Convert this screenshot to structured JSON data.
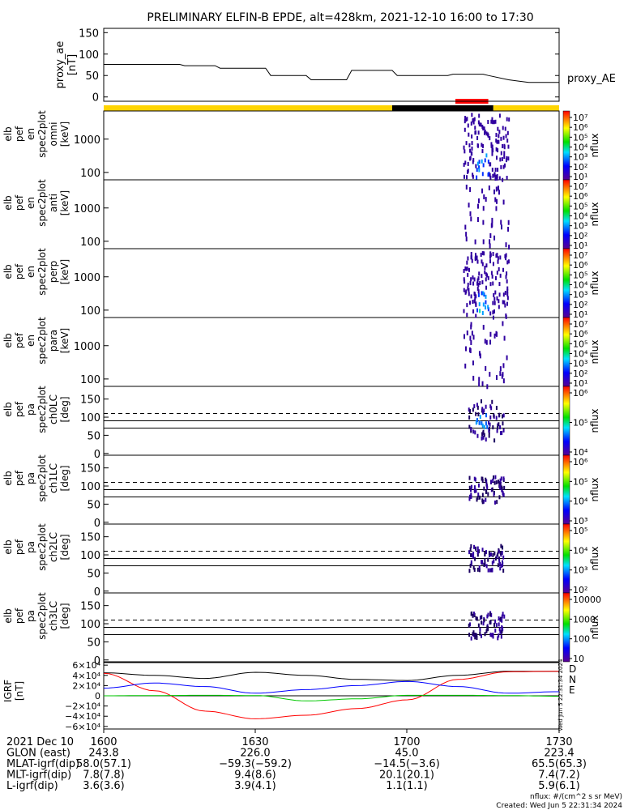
{
  "title": "PRELIMINARY ELFIN-B EPDE, alt=428km, 2021-12-10 16:00 to 17:30",
  "colors": {
    "axis": "#000000",
    "yellow_bar": "#ffd400",
    "black_bar": "#000000",
    "red_marker": "#ff0000",
    "spec_core": "#00a0ff",
    "spec_edge": "#3000a0",
    "igrf_total": "#000000",
    "igrf_north": "#0000ff",
    "igrf_east": "#00c800",
    "igrf_down": "#ff0000"
  },
  "ae_panel": {
    "ylabel_lines": [
      "proxy_ae",
      "[nT]"
    ],
    "ticks": [
      "150",
      "100",
      "50",
      "0"
    ],
    "legend": "proxy_AE"
  },
  "spec_panels": [
    {
      "label_lines": [
        "elb",
        "pef",
        "en",
        "spec2plot",
        "omni",
        "[keV]"
      ],
      "ticks": [
        "1000",
        "100"
      ],
      "cb_ticks": [
        "10⁷",
        "10⁶",
        "10⁵",
        "10⁴",
        "10³",
        "10²",
        "10¹"
      ],
      "cb_label": "nflux"
    },
    {
      "label_lines": [
        "elb",
        "pef",
        "en",
        "spec2plot",
        "anti",
        "[keV]"
      ],
      "ticks": [
        "1000",
        "100"
      ],
      "cb_ticks": [
        "10⁷",
        "10⁶",
        "10⁵",
        "10⁴",
        "10³",
        "10²",
        "10¹"
      ],
      "cb_label": "nflux"
    },
    {
      "label_lines": [
        "elb",
        "pef",
        "en",
        "spec2plot",
        "perp",
        "[keV]"
      ],
      "ticks": [
        "1000",
        "100"
      ],
      "cb_ticks": [
        "10⁷",
        "10⁶",
        "10⁵",
        "10⁴",
        "10³",
        "10²",
        "10¹"
      ],
      "cb_label": "nflux"
    },
    {
      "label_lines": [
        "elb",
        "pef",
        "en",
        "spec2plot",
        "para",
        "[keV]"
      ],
      "ticks": [
        "1000",
        "100"
      ],
      "cb_ticks": [
        "10⁷",
        "10⁶",
        "10⁵",
        "10⁴",
        "10³",
        "10²",
        "10¹"
      ],
      "cb_label": "nflux"
    }
  ],
  "pa_panels": [
    {
      "label_lines": [
        "elb",
        "pef",
        "pa",
        "spec2plot",
        "ch0LC",
        "[deg]"
      ],
      "ticks": [
        "150",
        "100",
        "50",
        "0"
      ],
      "cb_ticks": [
        "10⁶",
        "10⁵",
        "10⁴"
      ],
      "cb_label": "nflux"
    },
    {
      "label_lines": [
        "elb",
        "pef",
        "pa",
        "spec2plot",
        "ch1LC",
        "[deg]"
      ],
      "ticks": [
        "150",
        "100",
        "50",
        "0"
      ],
      "cb_ticks": [
        "10⁶",
        "10⁵",
        "10⁴",
        "10³"
      ],
      "cb_label": "nflux"
    },
    {
      "label_lines": [
        "elb",
        "pef",
        "pa",
        "spec2plot",
        "ch2LC",
        "[deg]"
      ],
      "ticks": [
        "150",
        "100",
        "50",
        "0"
      ],
      "cb_ticks": [
        "10⁵",
        "10⁴",
        "10³",
        "10²"
      ],
      "cb_label": "nflux"
    },
    {
      "label_lines": [
        "elb",
        "pef",
        "pa",
        "spec2plot",
        "ch3LC",
        "[deg]"
      ],
      "ticks": [
        "150",
        "100",
        "50",
        "0"
      ],
      "cb_ticks": [
        "10000",
        "1000",
        "100",
        "10"
      ],
      "cb_label": "nflux"
    }
  ],
  "igrf_panel": {
    "label_lines": [
      "IGRF",
      "[nT]"
    ],
    "ticks": [
      "6×10⁴",
      "4×10⁴",
      "2×10⁴",
      "0",
      "−2×10⁴",
      "−4×10⁴",
      "−6×10⁴"
    ],
    "legend": [
      "D",
      "N",
      "E"
    ],
    "stamp": "Wed Jun  5 22:31:34 2024"
  },
  "orbit_table": {
    "rows": [
      {
        "label": "2021 Dec 10",
        "values": [
          "1600",
          "1630",
          "1700",
          "1730"
        ]
      },
      {
        "label": "GLON (east)",
        "values": [
          "243.8",
          "226.0",
          "45.0",
          "223.4"
        ]
      },
      {
        "label": "MLAT-igrf(dip)",
        "values": [
          "58.0(57.1)",
          "−59.3(−59.2)",
          "−14.5(−3.6)",
          "65.5(65.3)"
        ]
      },
      {
        "label": "MLT-igrf(dip)",
        "values": [
          "7.8(7.8)",
          "9.4(8.6)",
          "20.1(20.1)",
          "7.4(7.2)"
        ]
      },
      {
        "label": "L-igrf(dip)",
        "values": [
          "3.6(3.6)",
          "3.9(4.1)",
          "1.1(1.1)",
          "5.9(6.1)"
        ]
      }
    ]
  },
  "footer": {
    "units": "nflux: #/(cm^2 s sr MeV)",
    "created": "Created: Wed Jun  5 22:31:34 2024"
  },
  "chart_data": [
    {
      "type": "line",
      "title": "PRELIMINARY ELFIN-B EPDE, alt=428km, 2021-12-10 16:00 to 17:30",
      "ylabel": "proxy_ae [nT]",
      "ylim": [
        -10,
        160
      ],
      "x_time_range": [
        "16:00",
        "17:30"
      ],
      "series": [
        {
          "name": "proxy_AE",
          "x": [
            "16:00",
            "16:15",
            "16:16",
            "16:22",
            "16:23",
            "16:32",
            "16:33",
            "16:40",
            "16:41",
            "16:48",
            "16:49",
            "16:57",
            "16:58",
            "17:08",
            "17:09",
            "17:15",
            "17:16",
            "17:20",
            "17:24",
            "17:30"
          ],
          "y": [
            76,
            76,
            73,
            73,
            67,
            67,
            50,
            50,
            40,
            40,
            62,
            62,
            50,
            50,
            53,
            53,
            50,
            40,
            34,
            34
          ]
        }
      ]
    },
    {
      "type": "heatmap",
      "description_series": "electron energy spectrograms omni, anti, perp, para",
      "ylabel": "[keV]",
      "yscale": "log",
      "ylim": [
        60,
        7000
      ],
      "colorbar_range": [
        "10¹",
        "10⁷"
      ],
      "active_interval": [
        "17:11",
        "17:20"
      ]
    },
    {
      "type": "heatmap",
      "description_series": "pitch angle spectrograms ch0LC, ch1LC, ch2LC, ch3LC",
      "ylabel": "[deg]",
      "ylim": [
        -5,
        185
      ],
      "reference_lines_deg": [
        70,
        90,
        110
      ],
      "active_interval": [
        "17:12",
        "17:19"
      ]
    },
    {
      "type": "line",
      "ylabel": "IGRF [nT]",
      "ylim": [
        -65000,
        65000
      ],
      "x": [
        "16:00",
        "16:10",
        "16:20",
        "16:30",
        "16:40",
        "16:50",
        "17:00",
        "17:10",
        "17:20",
        "17:30"
      ],
      "series": [
        {
          "name": "total",
          "y": [
            45000,
            40000,
            34000,
            46000,
            40000,
            32000,
            30000,
            40000,
            48000,
            48000
          ]
        },
        {
          "name": "D",
          "y": [
            44000,
            10000,
            -30000,
            -45000,
            -38000,
            -25000,
            -8000,
            32000,
            47000,
            48000
          ]
        },
        {
          "name": "N",
          "y": [
            15000,
            25000,
            18000,
            5000,
            12000,
            20000,
            28000,
            18000,
            5000,
            8000
          ]
        },
        {
          "name": "E",
          "y": [
            0,
            500,
            1000,
            500,
            -10000,
            -6000,
            1000,
            1000,
            500,
            -1000
          ]
        }
      ]
    }
  ]
}
